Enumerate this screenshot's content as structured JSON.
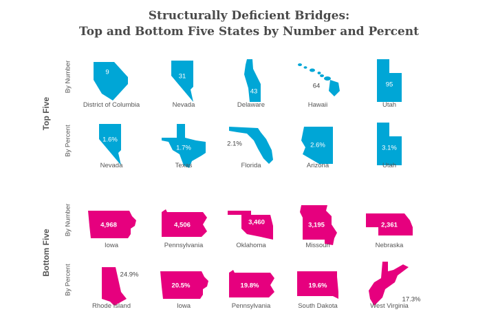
{
  "title_line1": "Structurally Deficient Bridges:",
  "title_line2": "Top and Bottom Five States by Number and Percent",
  "colors": {
    "top": "#00a6d6",
    "bottom": "#e6007e"
  },
  "sections": {
    "top": {
      "label": "Top Five",
      "rows": [
        {
          "label": "By Number",
          "items": [
            {
              "state": "District of Columbia",
              "value": "9",
              "shape": "dc-shape-icon",
              "label_pos": "inside"
            },
            {
              "state": "Nevada",
              "value": "31",
              "shape": "nevada-shape-icon",
              "label_pos": "inside"
            },
            {
              "state": "Delaware",
              "value": "43",
              "shape": "delaware-shape-icon",
              "label_pos": "inside"
            },
            {
              "state": "Hawaii",
              "value": "64",
              "shape": "hawaii-shape-icon",
              "label_pos": "outside"
            },
            {
              "state": "Utah",
              "value": "95",
              "shape": "utah-shape-icon",
              "label_pos": "inside"
            }
          ]
        },
        {
          "label": "By Percent",
          "items": [
            {
              "state": "Nevada",
              "value": "1.6%",
              "shape": "nevada-shape-icon",
              "label_pos": "inside"
            },
            {
              "state": "Texas",
              "value": "1.7%",
              "shape": "texas-shape-icon",
              "label_pos": "inside"
            },
            {
              "state": "Florida",
              "value": "2.1%",
              "shape": "florida-shape-icon",
              "label_pos": "outside"
            },
            {
              "state": "Arizona",
              "value": "2.6%",
              "shape": "arizona-shape-icon",
              "label_pos": "inside"
            },
            {
              "state": "Utah",
              "value": "3.1%",
              "shape": "utah-shape-icon",
              "label_pos": "inside"
            }
          ]
        }
      ]
    },
    "bottom": {
      "label": "Bottom Five",
      "rows": [
        {
          "label": "By Number",
          "items": [
            {
              "state": "Iowa",
              "value": "4,968",
              "shape": "iowa-shape-icon",
              "label_pos": "inside"
            },
            {
              "state": "Pennsylvania",
              "value": "4,506",
              "shape": "pennsylvania-shape-icon",
              "label_pos": "inside"
            },
            {
              "state": "Oklahoma",
              "value": "3,460",
              "shape": "oklahoma-shape-icon",
              "label_pos": "inside"
            },
            {
              "state": "Missouri",
              "value": "3,195",
              "shape": "missouri-shape-icon",
              "label_pos": "inside"
            },
            {
              "state": "Nebraska",
              "value": "2,361",
              "shape": "nebraska-shape-icon",
              "label_pos": "inside"
            }
          ]
        },
        {
          "label": "By Percent",
          "items": [
            {
              "state": "Rhode Island",
              "value": "24.9%",
              "shape": "rhode-island-shape-icon",
              "label_pos": "outside"
            },
            {
              "state": "Iowa",
              "value": "20.5%",
              "shape": "iowa-shape-icon",
              "label_pos": "inside"
            },
            {
              "state": "Pennsylvania",
              "value": "19.8%",
              "shape": "pennsylvania-shape-icon",
              "label_pos": "inside"
            },
            {
              "state": "South Dakota",
              "value": "19.6%",
              "shape": "south-dakota-shape-icon",
              "label_pos": "inside"
            },
            {
              "state": "West Virginia",
              "value": "17.3%",
              "shape": "west-virginia-shape-icon",
              "label_pos": "outside"
            }
          ]
        }
      ]
    }
  }
}
